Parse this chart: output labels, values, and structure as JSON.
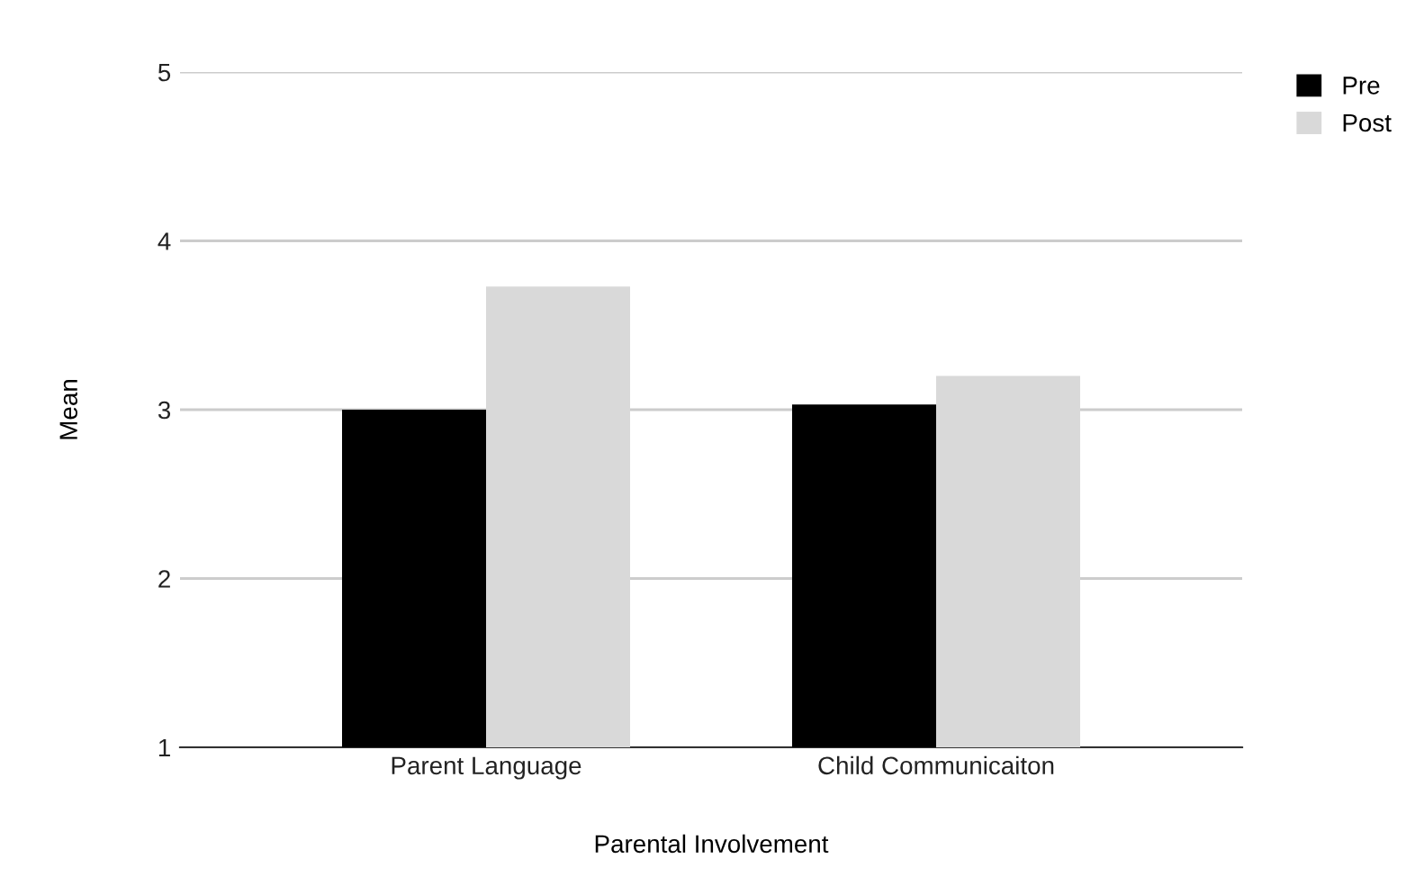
{
  "chart_data": {
    "type": "bar",
    "xlabel": "Parental Involvement",
    "ylabel": "Mean",
    "categories": [
      "Parent Language",
      "Child Communicaiton"
    ],
    "series": [
      {
        "name": "Pre",
        "color": "#000000",
        "values": [
          3.0,
          3.03
        ]
      },
      {
        "name": "Post",
        "color": "#d9d9d9",
        "values": [
          3.73,
          3.2
        ]
      }
    ],
    "ylim": [
      1,
      5
    ],
    "yticks": [
      1,
      2,
      3,
      4,
      5
    ],
    "grid": "y",
    "legend": "top right"
  }
}
